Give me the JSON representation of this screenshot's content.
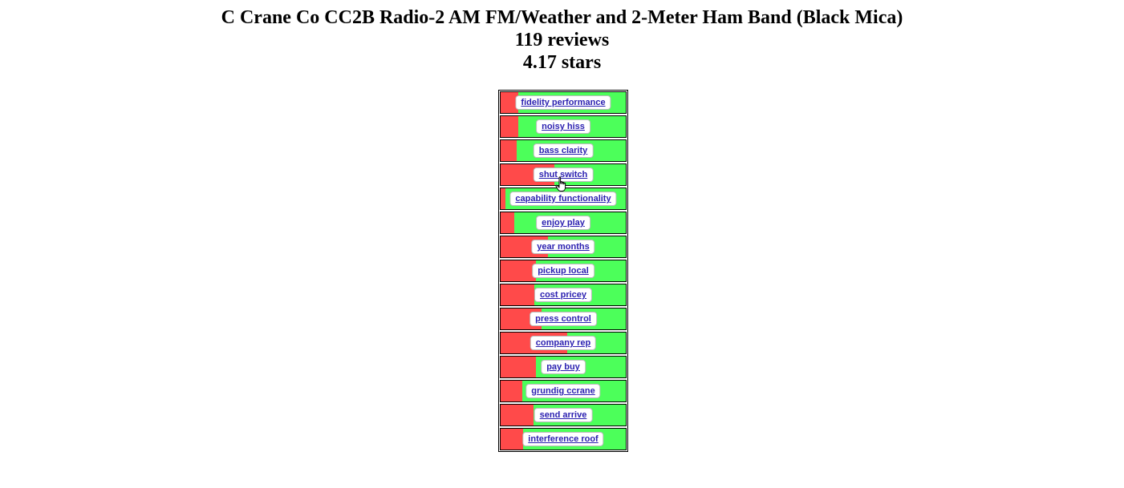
{
  "header": {
    "title": "C Crane Co CC2B Radio-2 AM FM/Weather and 2-Meter Ham Band (Black Mica)",
    "reviews": "119 reviews",
    "stars": "4.17 stars"
  },
  "colors": {
    "negative": "#ff4a4a",
    "positive": "#4cff5a",
    "link": "#2a1fb0"
  },
  "topics": [
    {
      "label": "fidelity performance",
      "negative_fraction": 0.14
    },
    {
      "label": "noisy hiss",
      "negative_fraction": 0.14
    },
    {
      "label": "bass clarity",
      "negative_fraction": 0.13
    },
    {
      "label": "shut switch",
      "negative_fraction": 0.43
    },
    {
      "label": "capability functionality",
      "negative_fraction": 0.04
    },
    {
      "label": "enjoy play",
      "negative_fraction": 0.11
    },
    {
      "label": "year months",
      "negative_fraction": 0.38
    },
    {
      "label": "pickup local",
      "negative_fraction": 0.28
    },
    {
      "label": "cost pricey",
      "negative_fraction": 0.27
    },
    {
      "label": "press control",
      "negative_fraction": 0.33
    },
    {
      "label": "company rep",
      "negative_fraction": 0.53
    },
    {
      "label": "pay buy",
      "negative_fraction": 0.28
    },
    {
      "label": "grundig ccrane",
      "negative_fraction": 0.17
    },
    {
      "label": "send arrive",
      "negative_fraction": 0.26
    },
    {
      "label": "interference roof",
      "negative_fraction": 0.18
    }
  ],
  "cursor_icon": "hand-pointer-icon"
}
